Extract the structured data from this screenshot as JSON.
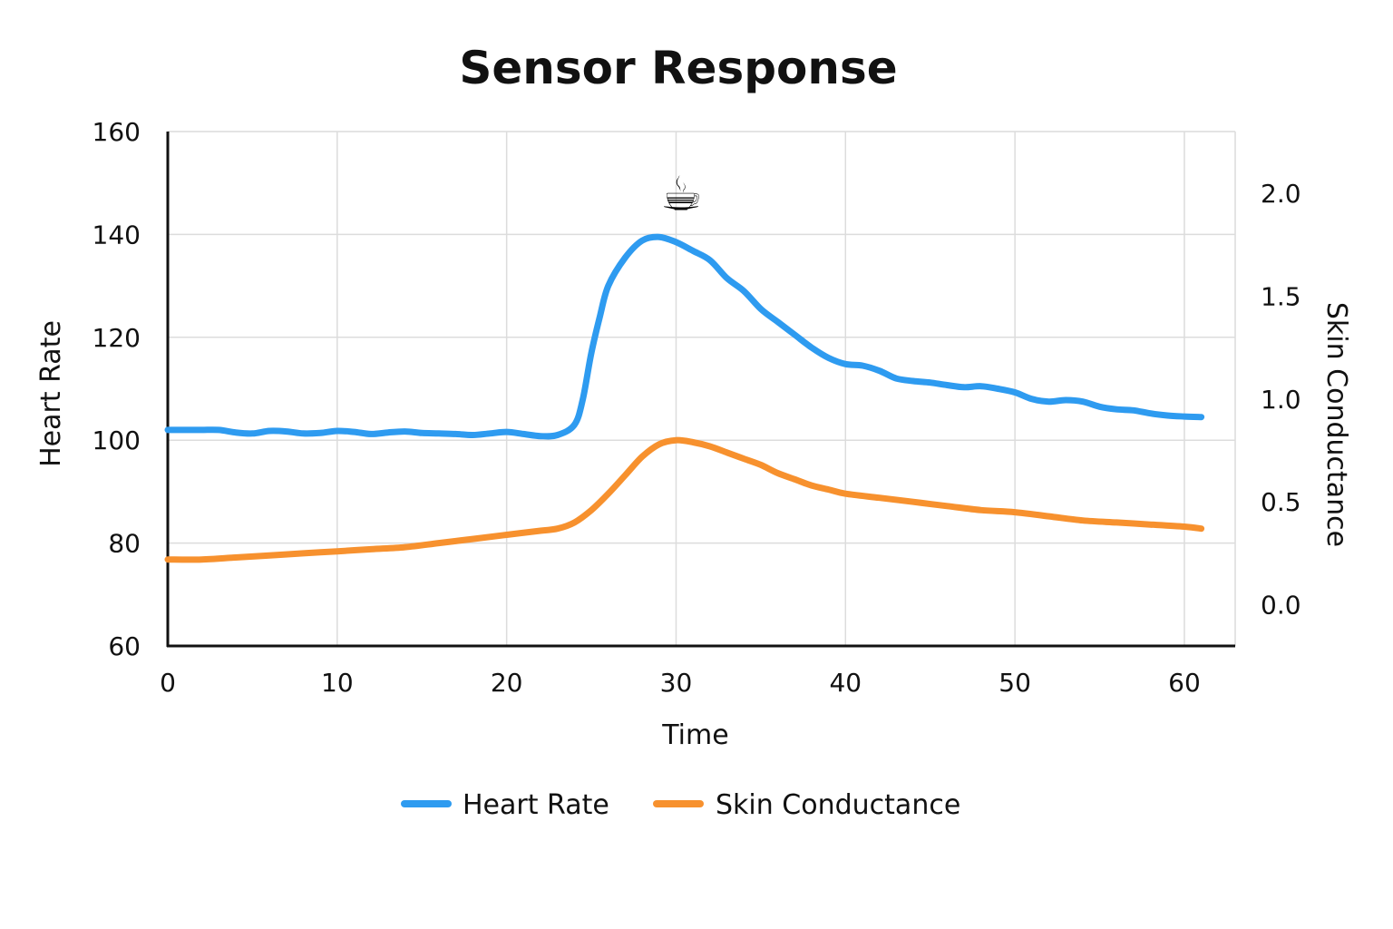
{
  "chart_data": {
    "type": "line",
    "title": "Sensor Response",
    "xlabel": "Time",
    "ylabel_left": "Heart Rate",
    "ylabel_right": "Skin Conductance",
    "xlim": [
      0,
      63
    ],
    "ylim_left": [
      60,
      160
    ],
    "ylim_right": [
      -0.2,
      2.3
    ],
    "xticks": [
      0,
      10,
      20,
      30,
      40,
      50,
      60
    ],
    "yticks_left": [
      60,
      80,
      100,
      120,
      140,
      160
    ],
    "yticks_right": [
      "0.0",
      "0.5",
      "1.0",
      "1.5",
      "2.0"
    ],
    "grid": true,
    "legend_position": "bottom-center",
    "annotation": {
      "icon": "coffee-cup-icon",
      "glyph": "☕",
      "x": 30,
      "y": 150
    },
    "series": [
      {
        "name": "Heart Rate",
        "axis": "left",
        "color": "#2e9bf0",
        "x": [
          0,
          1,
          2,
          3,
          4,
          5,
          6,
          7,
          8,
          9,
          10,
          11,
          12,
          13,
          14,
          15,
          16,
          17,
          18,
          19,
          20,
          21,
          22,
          23,
          24,
          24.5,
          25,
          25.5,
          26,
          27,
          28,
          29,
          30,
          31,
          32,
          33,
          34,
          35,
          36,
          37,
          38,
          39,
          40,
          41,
          42,
          43,
          44,
          45,
          46,
          47,
          48,
          49,
          50,
          51,
          52,
          53,
          54,
          55,
          56,
          57,
          58,
          59,
          60,
          61
        ],
        "y": [
          102,
          102,
          102,
          102,
          101.5,
          101.3,
          101.8,
          101.7,
          101.3,
          101.4,
          101.8,
          101.6,
          101.2,
          101.5,
          101.7,
          101.4,
          101.3,
          101.2,
          101.0,
          101.3,
          101.6,
          101.2,
          100.8,
          101.0,
          103.0,
          108.0,
          117.0,
          124.0,
          130.0,
          135.5,
          138.8,
          139.5,
          138.5,
          136.8,
          135.0,
          131.5,
          129.0,
          125.5,
          123.0,
          120.5,
          118.0,
          116.0,
          114.8,
          114.5,
          113.5,
          112.0,
          111.5,
          111.2,
          110.7,
          110.3,
          110.5,
          110.0,
          109.3,
          108.0,
          107.5,
          107.8,
          107.5,
          106.5,
          106.0,
          105.8,
          105.2,
          104.8,
          104.6,
          104.5
        ]
      },
      {
        "name": "Skin Conductance",
        "axis": "right",
        "color": "#f7912e",
        "x": [
          0,
          2,
          4,
          6,
          8,
          10,
          12,
          14,
          16,
          18,
          20,
          22,
          23,
          24,
          25,
          26,
          27,
          28,
          29,
          30,
          31,
          32,
          33,
          34,
          35,
          36,
          37,
          38,
          39,
          40,
          42,
          44,
          46,
          48,
          50,
          52,
          54,
          56,
          58,
          60,
          61
        ],
        "y": [
          0.22,
          0.22,
          0.23,
          0.24,
          0.25,
          0.26,
          0.27,
          0.28,
          0.3,
          0.32,
          0.34,
          0.36,
          0.37,
          0.4,
          0.46,
          0.54,
          0.63,
          0.72,
          0.78,
          0.8,
          0.79,
          0.77,
          0.74,
          0.71,
          0.68,
          0.64,
          0.61,
          0.58,
          0.56,
          0.54,
          0.52,
          0.5,
          0.48,
          0.46,
          0.45,
          0.43,
          0.41,
          0.4,
          0.39,
          0.38,
          0.37
        ]
      }
    ]
  }
}
